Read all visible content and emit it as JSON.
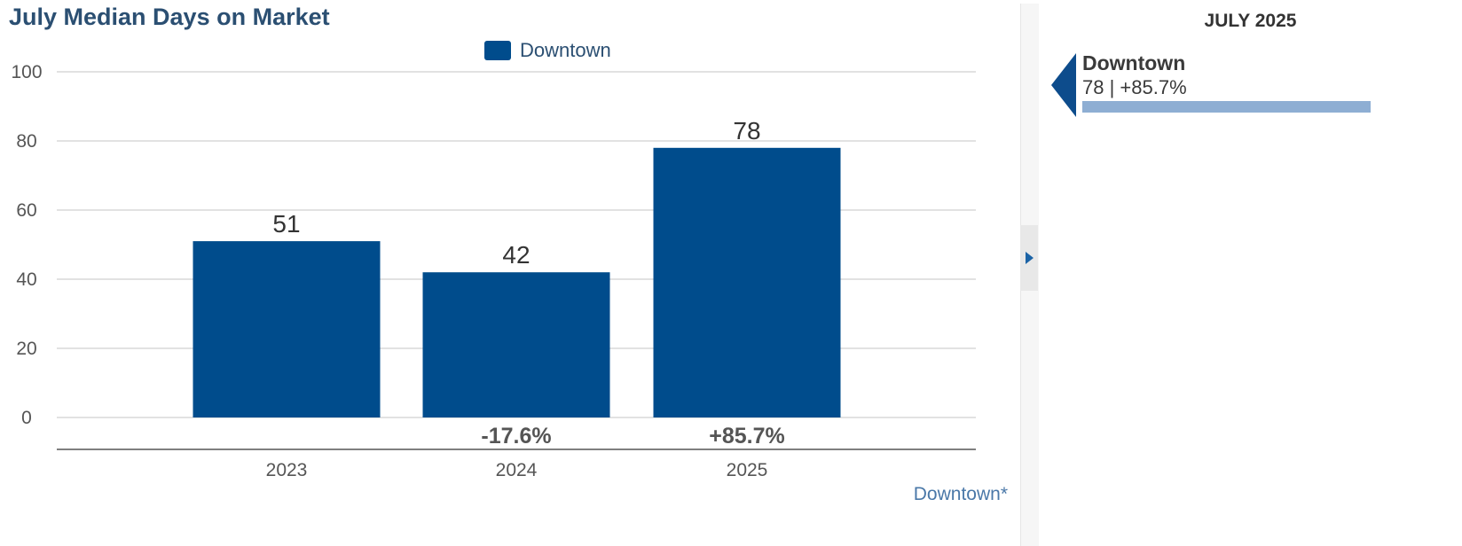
{
  "chart_data": {
    "type": "bar",
    "title": "July Median Days on Market",
    "categories": [
      "2023",
      "2024",
      "2025"
    ],
    "series": [
      {
        "name": "Downtown",
        "values": [
          51,
          42,
          78
        ],
        "color": "#004c8c"
      }
    ],
    "data_labels": [
      "51",
      "42",
      "78"
    ],
    "change_labels": [
      "",
      "-17.6%",
      "+85.7%"
    ],
    "yticks": [
      "0",
      "20",
      "40",
      "60",
      "80",
      "100"
    ],
    "ylim": [
      0,
      100
    ],
    "grid": true,
    "legend_position": "top-center",
    "xlabel": "",
    "ylabel": ""
  },
  "source_link": "Downtown*",
  "side_panel": {
    "header": "JULY 2025",
    "item": {
      "name": "Downtown",
      "value_text": "78 | +85.7%",
      "bar_fraction": 1.0,
      "bar_color": "#8eaed3",
      "pointer_color": "#0d4c8c"
    }
  }
}
